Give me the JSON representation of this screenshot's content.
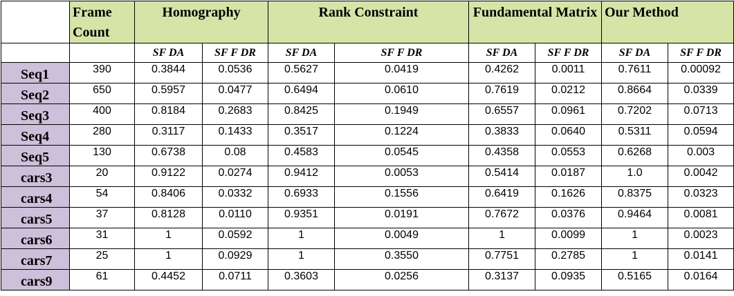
{
  "header": {
    "frame_count": "Frame Count",
    "groups": [
      "Homography",
      "Rank Constraint",
      "Fundamental Matrix",
      "Our Method"
    ]
  },
  "subheaders": [
    "SF DA",
    "SF F DR",
    "SF DA",
    "SF F DR",
    "SF DA",
    "SF F DR",
    "SF DA",
    "SF F DR"
  ],
  "rows": [
    {
      "label": "Seq1",
      "cells": [
        "390",
        "0.3844",
        "0.0536",
        "0.5627",
        "0.0419",
        "0.4262",
        "0.0011",
        "0.7611",
        "0.00092"
      ]
    },
    {
      "label": "Seq2",
      "cells": [
        "650",
        "0.5957",
        "0.0477",
        "0.6494",
        "0.0610",
        "0.7619",
        "0.0212",
        "0.8664",
        "0.0339"
      ]
    },
    {
      "label": "Seq3",
      "cells": [
        "400",
        "0.8184",
        "0.2683",
        "0.8425",
        "0.1949",
        "0.6557",
        "0.0961",
        "0.7202",
        "0.0713"
      ]
    },
    {
      "label": "Seq4",
      "cells": [
        "280",
        "0.3117",
        "0.1433",
        "0.3517",
        "0.1224",
        "0.3833",
        "0.0640",
        "0.5311",
        "0.0594"
      ]
    },
    {
      "label": "Seq5",
      "cells": [
        "130",
        "0.6738",
        "0.08",
        "0.4583",
        "0.0545",
        "0.4358",
        "0.0553",
        "0.6268",
        "0.003"
      ]
    },
    {
      "label": "cars3",
      "cells": [
        "20",
        "0.9122",
        "0.0274",
        "0.9412",
        "0.0053",
        "0.5414",
        "0.0187",
        "1.0",
        "0.0042"
      ]
    },
    {
      "label": "cars4",
      "cells": [
        "54",
        "0.8406",
        "0.0332",
        "0.6933",
        "0.1556",
        "0.6419",
        "0.1626",
        "0.8375",
        "0.0323"
      ]
    },
    {
      "label": "cars5",
      "cells": [
        "37",
        "0.8128",
        "0.0110",
        "0.9351",
        "0.0191",
        "0.7672",
        "0.0376",
        "0.9464",
        "0.0081"
      ]
    },
    {
      "label": "cars6",
      "cells": [
        "31",
        "1",
        "0.0592",
        "1",
        "0.0049",
        "1",
        "0.0099",
        "1",
        "0.0023"
      ]
    },
    {
      "label": "cars7",
      "cells": [
        "25",
        "1",
        "0.0929",
        "1",
        "0.3550",
        "0.7751",
        "0.2785",
        "1",
        "0.0141"
      ]
    },
    {
      "label": "cars9",
      "cells": [
        "61",
        "0.4452",
        "0.0711",
        "0.3603",
        "0.0256",
        "0.3137",
        "0.0935",
        "0.5165",
        "0.0164"
      ]
    }
  ]
}
